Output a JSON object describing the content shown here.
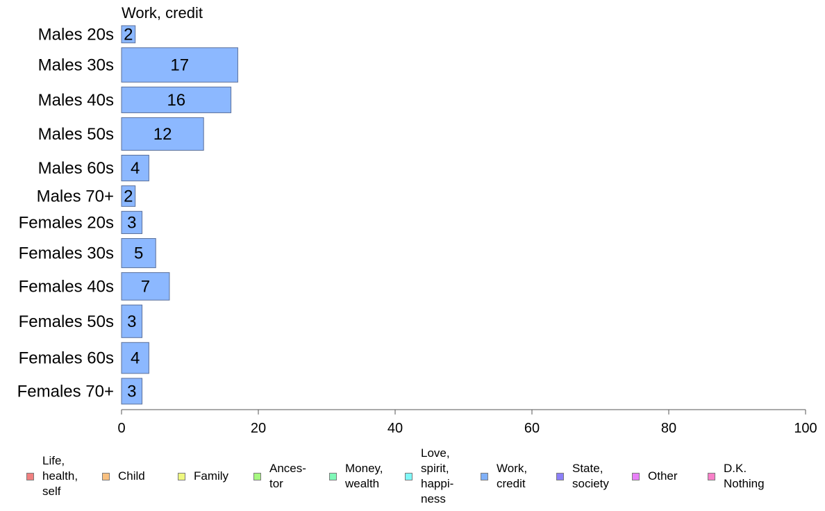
{
  "chart_data": {
    "type": "bar",
    "orientation": "horizontal",
    "title": "Work, credit",
    "categories": [
      "Males 20s",
      "Males 30s",
      "Males 40s",
      "Males 50s",
      "Males 60s",
      "Males 70+",
      "Females 20s",
      "Females 30s",
      "Females 40s",
      "Females 50s",
      "Females 60s",
      "Females 70+"
    ],
    "values": [
      2,
      17,
      16,
      12,
      4,
      2,
      3,
      5,
      7,
      3,
      4,
      3
    ],
    "value_labels": [
      "2",
      "17",
      "16",
      "12",
      "4",
      "2",
      "3",
      "5",
      "7",
      "3",
      "4",
      "3"
    ],
    "group_sizes": [
      0.5,
      1.0,
      0.75,
      0.95,
      0.75,
      0.6,
      0.65,
      0.85,
      0.8,
      0.95,
      0.9,
      0.75
    ],
    "xlim": [
      0,
      100
    ],
    "x_ticks": [
      0,
      20,
      40,
      60,
      80,
      100
    ],
    "x_tick_labels": [
      "0",
      "20",
      "40",
      "60",
      "80",
      "100"
    ],
    "bar_color": "#8cb8ff",
    "bar_edge_color": "#5a6f99",
    "grid": false,
    "legend_position": "bottom",
    "legend": [
      {
        "label": "Life,\nhealth,\nself",
        "color": "#f08080"
      },
      {
        "label": "Child",
        "color": "#f8c080"
      },
      {
        "label": "Family",
        "color": "#eef880"
      },
      {
        "label": "Ances-\ntor",
        "color": "#a6f880"
      },
      {
        "label": "Money,\nwealth",
        "color": "#80f8b8"
      },
      {
        "label": "Love,\nspirit,\nhappi-\nness",
        "color": "#80f8f8"
      },
      {
        "label": "Work,\ncredit",
        "color": "#80b0f8"
      },
      {
        "label": "State,\nsociety",
        "color": "#8c80f8"
      },
      {
        "label": "Other",
        "color": "#e880f8"
      },
      {
        "label": "D.K.\nNothing",
        "color": "#f880c8"
      }
    ]
  }
}
